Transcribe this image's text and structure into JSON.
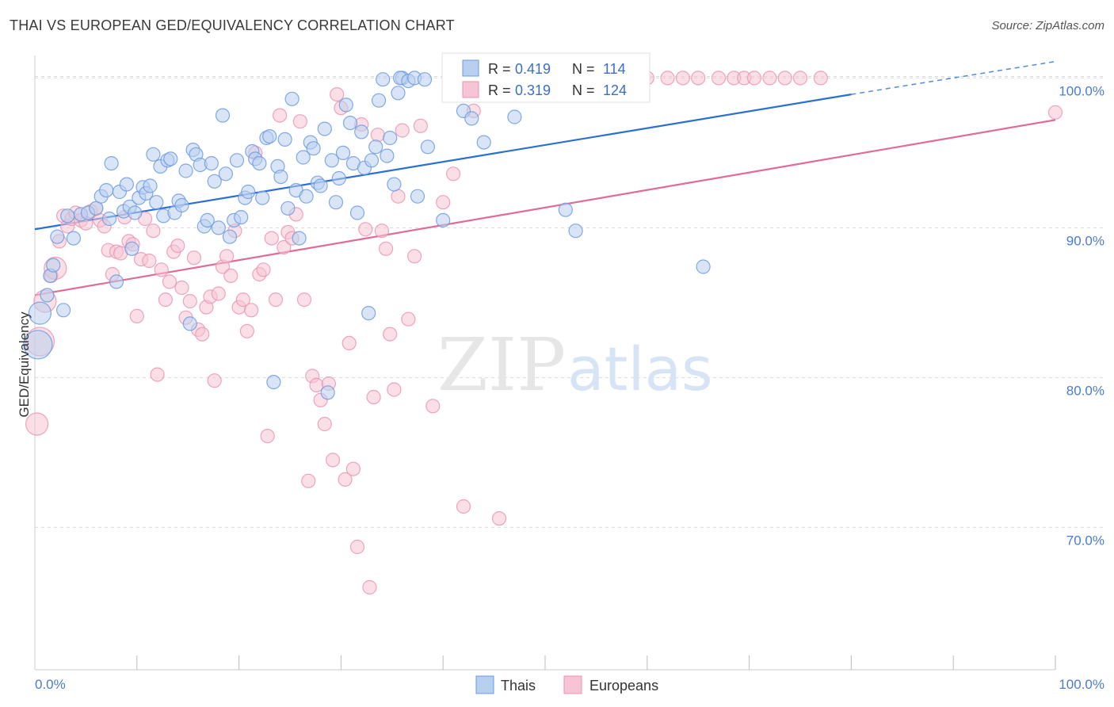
{
  "header": {
    "title": "THAI VS EUROPEAN GED/EQUIVALENCY CORRELATION CHART",
    "source": "Source: ZipAtlas.com"
  },
  "watermark": {
    "zip": "ZIP",
    "atlas": "atlas"
  },
  "colors": {
    "thai_fill": "#b9cff0",
    "thai_stroke": "#6c9be0",
    "thai_line": "#2a6fd1",
    "eu_fill": "#f6c4d4",
    "eu_stroke": "#ea95b3",
    "eu_line": "#e06b98",
    "tick_text": "#4a7cc9",
    "grid": "#d9d9d9"
  },
  "legend": {
    "thai": {
      "r_label": "R =",
      "r_value": "0.419",
      "n_label": "N =",
      "n_value": "114"
    },
    "eu": {
      "r_label": "R =",
      "r_value": "0.319",
      "n_label": "N =",
      "n_value": "124"
    }
  },
  "bottom_legend": {
    "thai": "Thais",
    "eu": "Europeans"
  },
  "chart_data": {
    "type": "scatter",
    "xlabel": "",
    "ylabel": "GED/Equivalency",
    "xlim": [
      0,
      100
    ],
    "ylim": [
      60.5,
      101.5
    ],
    "x_tick_labels": [
      "0.0%",
      "100.0%"
    ],
    "y_ticks": [
      70,
      80,
      90,
      100
    ],
    "y_tick_labels": [
      "70.0%",
      "80.0%",
      "90.0%",
      "100.0%"
    ],
    "grid": "horizontal dashed",
    "series": [
      {
        "name": "Thais",
        "trend": {
          "x0": 0,
          "y0": 89.9,
          "x1": 80,
          "y1": 98.9,
          "dashed_to_x": 100,
          "dashed_to_y": 101.1
        },
        "points": [
          [
            0.3,
            82.2,
            3
          ],
          [
            0.5,
            84.3,
            2
          ],
          [
            1.2,
            85.5,
            1
          ],
          [
            1.5,
            86.8,
            1
          ],
          [
            1.8,
            87.5,
            1
          ],
          [
            2.2,
            89.4,
            1
          ],
          [
            2.8,
            84.5,
            1
          ],
          [
            3.2,
            90.8,
            1
          ],
          [
            3.8,
            89.3,
            1
          ],
          [
            4.5,
            90.9,
            1
          ],
          [
            5.2,
            91.0,
            1
          ],
          [
            6.0,
            91.3,
            1
          ],
          [
            6.5,
            92.1,
            1
          ],
          [
            7.0,
            92.5,
            1
          ],
          [
            7.3,
            90.6,
            1
          ],
          [
            7.5,
            94.3,
            1
          ],
          [
            8.0,
            86.4,
            1
          ],
          [
            8.3,
            92.4,
            1
          ],
          [
            8.7,
            91.1,
            1
          ],
          [
            9.0,
            92.9,
            1
          ],
          [
            9.3,
            91.4,
            1
          ],
          [
            9.5,
            88.6,
            1
          ],
          [
            9.8,
            91.0,
            1
          ],
          [
            10.2,
            92.0,
            1
          ],
          [
            10.6,
            92.7,
            1
          ],
          [
            10.9,
            92.3,
            1
          ],
          [
            11.3,
            92.8,
            1
          ],
          [
            11.6,
            94.9,
            1
          ],
          [
            11.9,
            91.7,
            1
          ],
          [
            12.3,
            94.1,
            1
          ],
          [
            12.6,
            90.8,
            1
          ],
          [
            13.0,
            94.5,
            1
          ],
          [
            13.3,
            94.6,
            1
          ],
          [
            13.7,
            91.0,
            1
          ],
          [
            14.1,
            91.8,
            1
          ],
          [
            14.4,
            91.5,
            1
          ],
          [
            14.8,
            93.8,
            1
          ],
          [
            15.2,
            83.6,
            1
          ],
          [
            15.5,
            95.2,
            1
          ],
          [
            15.8,
            94.9,
            1
          ],
          [
            16.2,
            94.2,
            1
          ],
          [
            16.6,
            90.1,
            1
          ],
          [
            16.9,
            90.5,
            1
          ],
          [
            17.3,
            94.3,
            1
          ],
          [
            17.6,
            93.1,
            1
          ],
          [
            18.0,
            90.0,
            1
          ],
          [
            18.4,
            97.5,
            1
          ],
          [
            18.7,
            93.6,
            1
          ],
          [
            19.1,
            89.4,
            1
          ],
          [
            19.5,
            90.5,
            1
          ],
          [
            19.8,
            94.5,
            1
          ],
          [
            20.2,
            90.7,
            1
          ],
          [
            20.6,
            92.0,
            1
          ],
          [
            20.9,
            92.4,
            1
          ],
          [
            21.3,
            95.1,
            1
          ],
          [
            21.6,
            94.6,
            1
          ],
          [
            22.0,
            94.3,
            1
          ],
          [
            22.3,
            92.0,
            1
          ],
          [
            22.7,
            96.0,
            1
          ],
          [
            23.0,
            96.1,
            1
          ],
          [
            23.4,
            79.7,
            1
          ],
          [
            23.8,
            94.1,
            1
          ],
          [
            24.1,
            93.4,
            1
          ],
          [
            24.5,
            95.9,
            1
          ],
          [
            24.8,
            91.3,
            1
          ],
          [
            25.2,
            98.6,
            1
          ],
          [
            25.6,
            92.5,
            1
          ],
          [
            25.9,
            89.3,
            1
          ],
          [
            26.3,
            94.7,
            1
          ],
          [
            26.6,
            92.1,
            1
          ],
          [
            27.0,
            95.7,
            1
          ],
          [
            27.3,
            95.3,
            1
          ],
          [
            27.7,
            93.0,
            1
          ],
          [
            28.0,
            92.8,
            1
          ],
          [
            28.4,
            96.6,
            1
          ],
          [
            28.7,
            79.0,
            1
          ],
          [
            29.1,
            94.5,
            1
          ],
          [
            29.5,
            91.7,
            1
          ],
          [
            29.8,
            93.3,
            1
          ],
          [
            30.2,
            95.0,
            1
          ],
          [
            30.5,
            98.2,
            1
          ],
          [
            30.9,
            97.0,
            1
          ],
          [
            31.2,
            94.3,
            1
          ],
          [
            31.6,
            91.0,
            1
          ],
          [
            32.0,
            96.4,
            1
          ],
          [
            32.3,
            94.0,
            1
          ],
          [
            32.7,
            84.3,
            1
          ],
          [
            33.0,
            94.5,
            1
          ],
          [
            33.4,
            95.4,
            1
          ],
          [
            33.7,
            98.5,
            1
          ],
          [
            34.1,
            99.9,
            1
          ],
          [
            34.5,
            94.8,
            1
          ],
          [
            34.8,
            96.0,
            1
          ],
          [
            35.2,
            92.9,
            1
          ],
          [
            35.6,
            99.0,
            1
          ],
          [
            36.0,
            100.0,
            1
          ],
          [
            37.5,
            92.1,
            1
          ],
          [
            38.5,
            95.4,
            1
          ],
          [
            40.0,
            90.5,
            1
          ],
          [
            42.0,
            97.8,
            1
          ],
          [
            42.8,
            97.3,
            1
          ],
          [
            44.0,
            95.7,
            1
          ],
          [
            47.0,
            97.4,
            1
          ],
          [
            48.0,
            100.0,
            1
          ],
          [
            52.0,
            91.2,
            1
          ],
          [
            53.0,
            89.8,
            1
          ],
          [
            65.5,
            87.4,
            1
          ],
          [
            35.8,
            100.0,
            1
          ],
          [
            36.6,
            99.8,
            1
          ],
          [
            37.2,
            100.0,
            1
          ],
          [
            38.2,
            99.9,
            1
          ],
          [
            43.5,
            99.9,
            1
          ],
          [
            45.5,
            99.9,
            1
          ],
          [
            46.5,
            100.0,
            1
          ]
        ]
      },
      {
        "name": "Europeans",
        "trend": {
          "x0": 0,
          "y0": 85.5,
          "x1": 100,
          "y1": 97.2
        },
        "points": [
          [
            0.2,
            76.9,
            2
          ],
          [
            0.5,
            82.4,
            3
          ],
          [
            1.0,
            85.1,
            2
          ],
          [
            1.6,
            86.8,
            1
          ],
          [
            2.0,
            87.3,
            2
          ],
          [
            2.4,
            89.1,
            1
          ],
          [
            2.8,
            90.8,
            1
          ],
          [
            3.2,
            90.1,
            1
          ],
          [
            3.6,
            90.6,
            1
          ],
          [
            4.0,
            91.0,
            1
          ],
          [
            4.5,
            90.5,
            1
          ],
          [
            5.0,
            90.3,
            1
          ],
          [
            5.5,
            91.1,
            1
          ],
          [
            6.0,
            91.3,
            1
          ],
          [
            6.4,
            90.5,
            1
          ],
          [
            6.8,
            90.1,
            1
          ],
          [
            7.2,
            88.5,
            1
          ],
          [
            7.6,
            86.9,
            1
          ],
          [
            8.0,
            88.4,
            1
          ],
          [
            8.4,
            88.3,
            1
          ],
          [
            8.8,
            90.7,
            1
          ],
          [
            9.2,
            89.1,
            1
          ],
          [
            9.6,
            88.9,
            1
          ],
          [
            10.0,
            84.1,
            1
          ],
          [
            10.4,
            87.9,
            1
          ],
          [
            10.8,
            90.6,
            1
          ],
          [
            11.2,
            87.8,
            1
          ],
          [
            11.6,
            89.8,
            1
          ],
          [
            12.0,
            80.2,
            1
          ],
          [
            12.4,
            87.2,
            1
          ],
          [
            12.8,
            85.2,
            1
          ],
          [
            13.2,
            86.4,
            1
          ],
          [
            13.6,
            88.4,
            1
          ],
          [
            14.0,
            88.8,
            1
          ],
          [
            14.4,
            86.0,
            1
          ],
          [
            14.8,
            84.0,
            1
          ],
          [
            15.2,
            85.1,
            1
          ],
          [
            15.6,
            88.0,
            1
          ],
          [
            16.0,
            83.2,
            1
          ],
          [
            16.4,
            82.9,
            1
          ],
          [
            16.8,
            84.7,
            1
          ],
          [
            17.2,
            85.4,
            1
          ],
          [
            17.6,
            79.8,
            1
          ],
          [
            18.0,
            85.6,
            1
          ],
          [
            18.4,
            87.4,
            1
          ],
          [
            18.8,
            88.1,
            1
          ],
          [
            19.2,
            86.8,
            1
          ],
          [
            19.6,
            89.8,
            1
          ],
          [
            20.0,
            84.7,
            1
          ],
          [
            20.4,
            85.2,
            1
          ],
          [
            20.8,
            83.1,
            1
          ],
          [
            21.2,
            84.5,
            1
          ],
          [
            21.6,
            95.0,
            1
          ],
          [
            22.0,
            86.9,
            1
          ],
          [
            22.4,
            87.2,
            1
          ],
          [
            22.8,
            76.1,
            1
          ],
          [
            23.2,
            89.3,
            1
          ],
          [
            23.6,
            85.2,
            1
          ],
          [
            24.0,
            97.5,
            1
          ],
          [
            24.4,
            88.7,
            1
          ],
          [
            24.8,
            89.7,
            1
          ],
          [
            25.2,
            89.3,
            1
          ],
          [
            25.6,
            90.9,
            1
          ],
          [
            26.0,
            97.1,
            1
          ],
          [
            26.4,
            85.2,
            1
          ],
          [
            26.8,
            73.1,
            1
          ],
          [
            27.2,
            80.1,
            1
          ],
          [
            27.6,
            79.5,
            1
          ],
          [
            28.0,
            78.5,
            1
          ],
          [
            28.4,
            76.9,
            1
          ],
          [
            28.8,
            79.6,
            1
          ],
          [
            29.2,
            74.5,
            1
          ],
          [
            29.6,
            98.9,
            1
          ],
          [
            30.0,
            98.0,
            1
          ],
          [
            30.4,
            73.2,
            1
          ],
          [
            30.8,
            82.3,
            1
          ],
          [
            31.2,
            73.9,
            1
          ],
          [
            31.6,
            68.7,
            1
          ],
          [
            32.0,
            96.9,
            1
          ],
          [
            32.4,
            89.9,
            1
          ],
          [
            32.8,
            66.0,
            1
          ],
          [
            33.2,
            78.7,
            1
          ],
          [
            33.6,
            96.2,
            1
          ],
          [
            34.0,
            89.8,
            1
          ],
          [
            34.4,
            88.6,
            1
          ],
          [
            34.8,
            82.9,
            1
          ],
          [
            35.2,
            79.2,
            1
          ],
          [
            35.6,
            92.1,
            1
          ],
          [
            36.0,
            96.5,
            1
          ],
          [
            36.6,
            83.9,
            1
          ],
          [
            37.2,
            88.1,
            1
          ],
          [
            37.8,
            96.8,
            1
          ],
          [
            39.0,
            78.1,
            1
          ],
          [
            40.0,
            91.7,
            1
          ],
          [
            41.0,
            93.6,
            1
          ],
          [
            42.0,
            71.4,
            1
          ],
          [
            43.0,
            97.8,
            1
          ],
          [
            45.5,
            70.6,
            1
          ],
          [
            47.0,
            100.0,
            1
          ],
          [
            47.8,
            100.0,
            1
          ],
          [
            49.0,
            100.0,
            1
          ],
          [
            50.0,
            100.0,
            1
          ],
          [
            51.0,
            100.0,
            1
          ],
          [
            52.0,
            100.0,
            1
          ],
          [
            54.0,
            100.0,
            1
          ],
          [
            55.0,
            100.0,
            1
          ],
          [
            56.5,
            100.0,
            1
          ],
          [
            58.0,
            100.0,
            1
          ],
          [
            59.0,
            100.0,
            1
          ],
          [
            60.0,
            100.0,
            1
          ],
          [
            62.0,
            100.0,
            1
          ],
          [
            63.5,
            100.0,
            1
          ],
          [
            65.0,
            100.0,
            1
          ],
          [
            67.0,
            100.0,
            1
          ],
          [
            68.5,
            100.0,
            1
          ],
          [
            69.5,
            100.0,
            1
          ],
          [
            70.5,
            100.0,
            1
          ],
          [
            72.0,
            100.0,
            1
          ],
          [
            73.5,
            100.0,
            1
          ],
          [
            75.0,
            100.0,
            1
          ],
          [
            77.0,
            100.0,
            1
          ],
          [
            100.0,
            97.7,
            1
          ]
        ]
      }
    ]
  }
}
